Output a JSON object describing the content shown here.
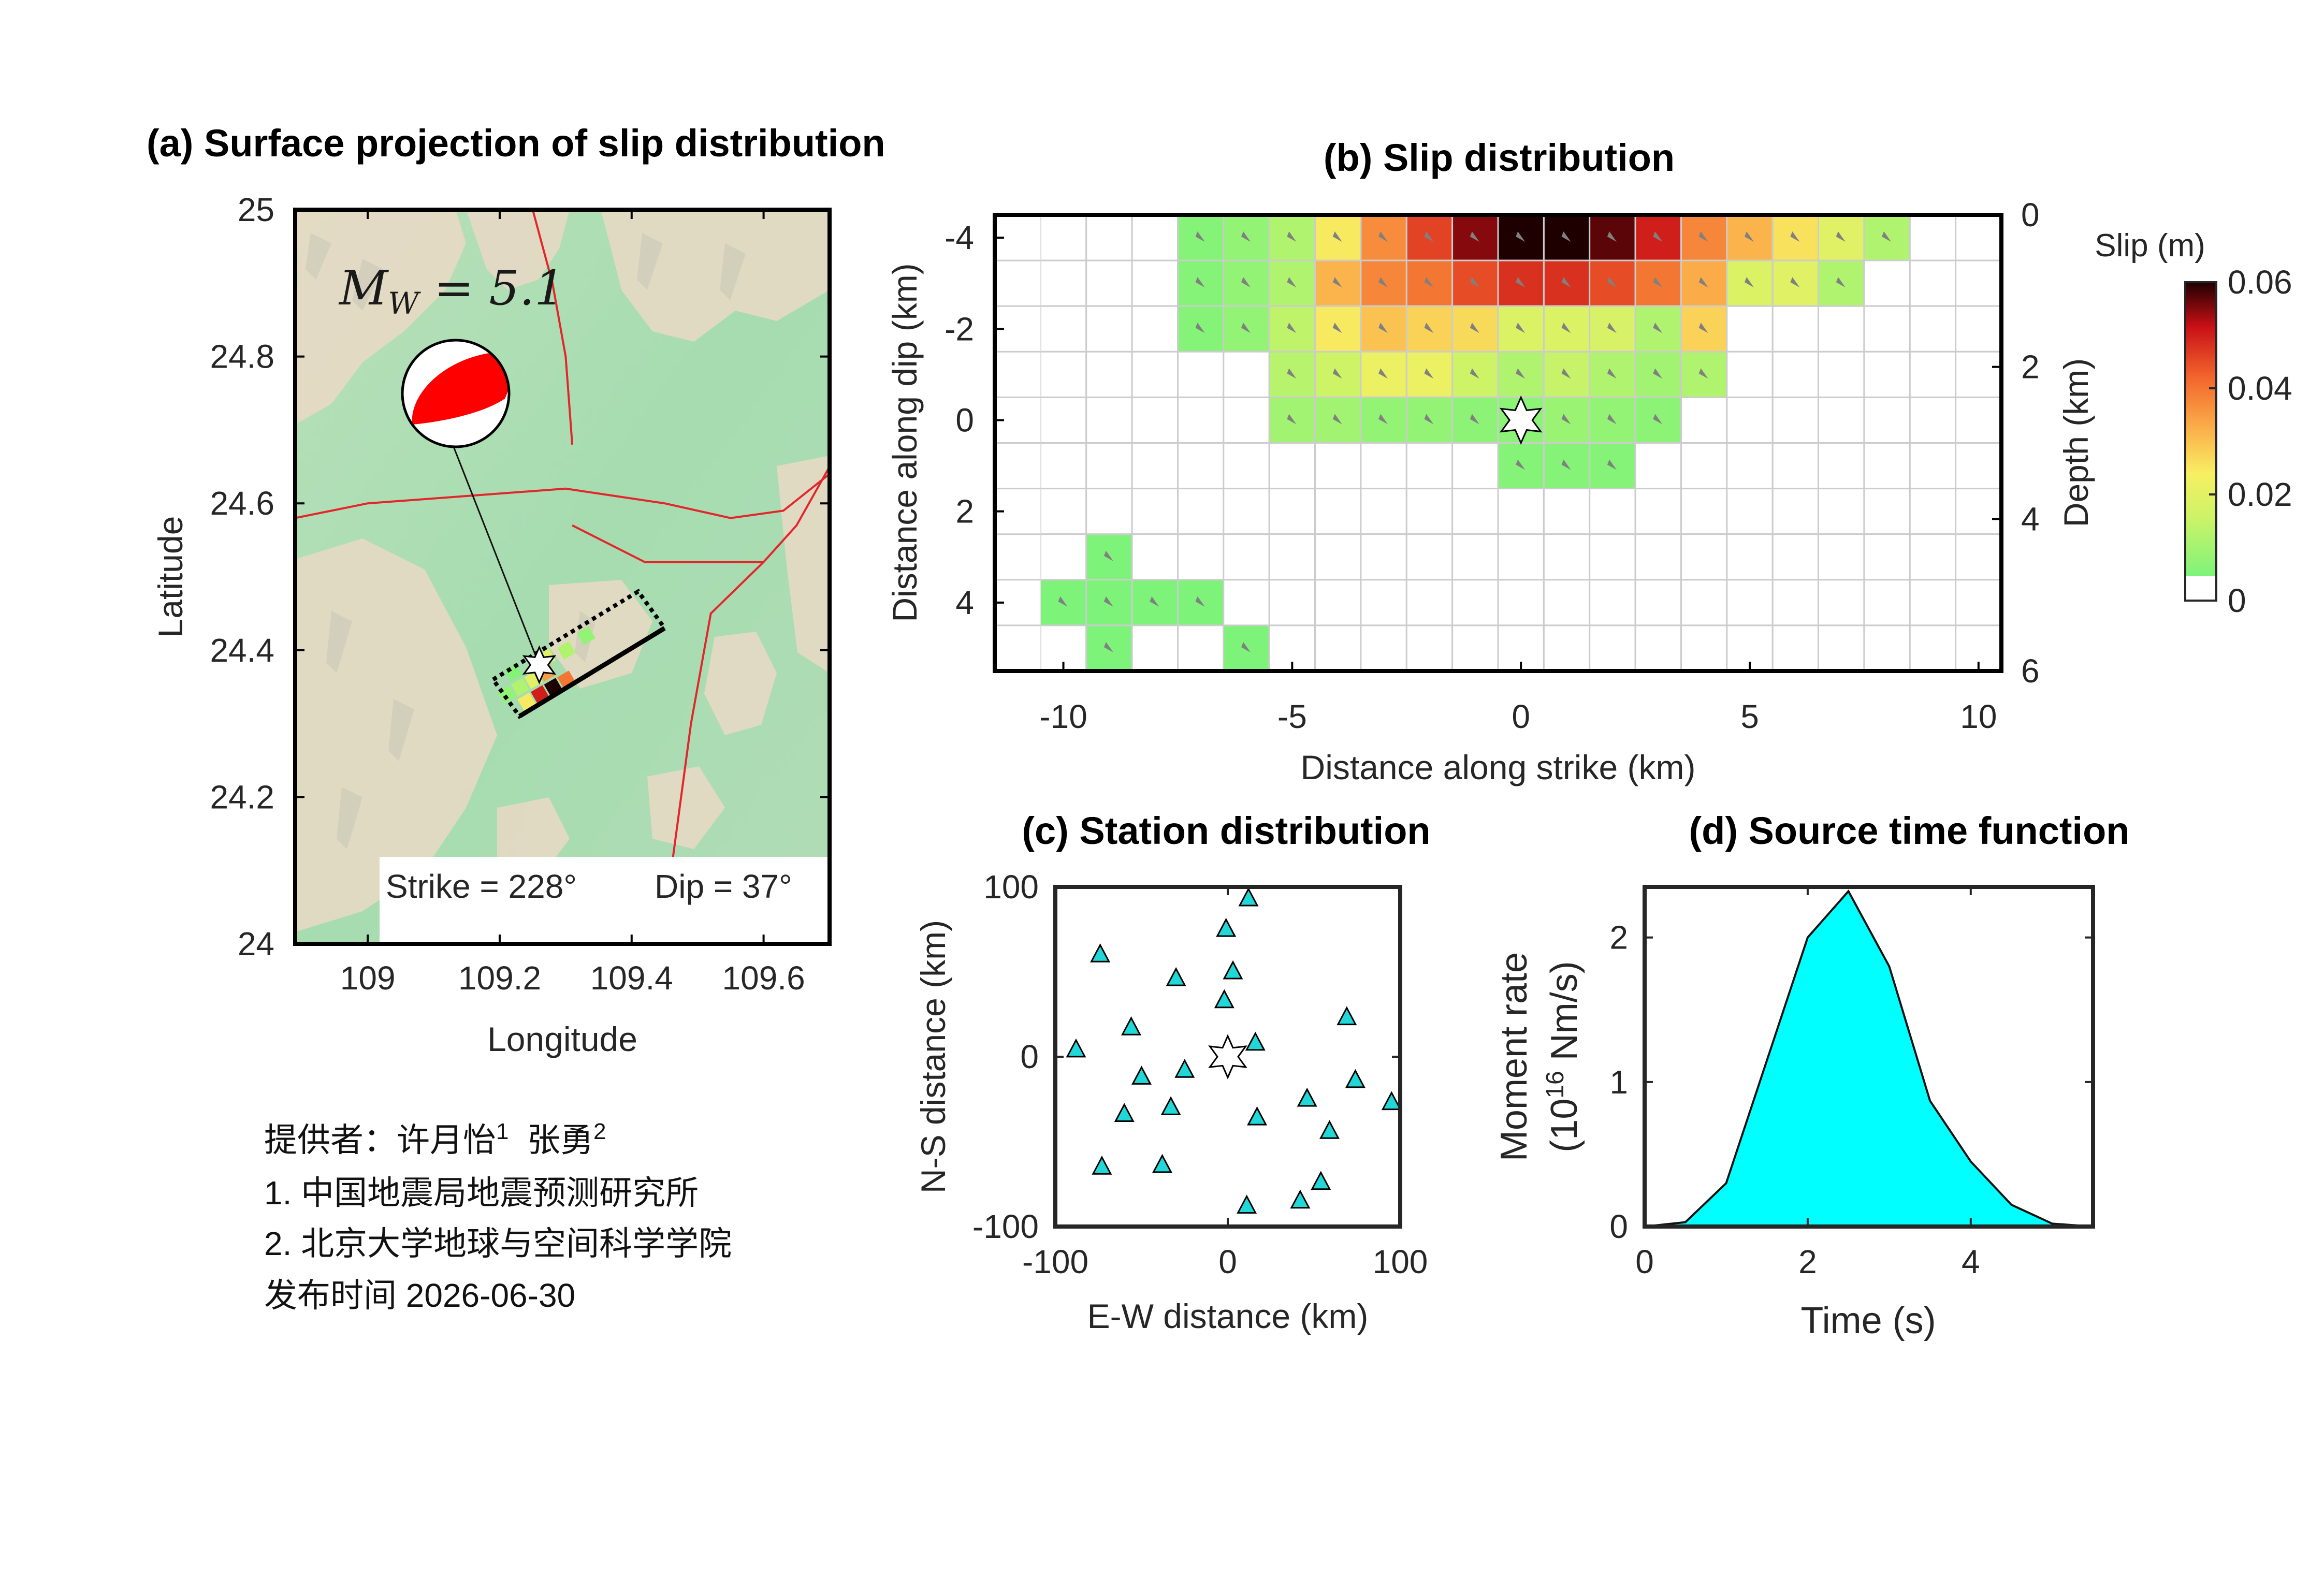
{
  "panel_a": {
    "title": "(a) Surface projection of slip distribution",
    "magnitude_label": "M_W = 5.1",
    "magnitude": 5.1,
    "strike_text": "Strike = 228°",
    "dip_text": "Dip = 37°",
    "xlabel": "Longitude",
    "ylabel": "Latitude",
    "xticks": [
      "109",
      "109.2",
      "109.4",
      "109.6"
    ],
    "yticks": [
      "24",
      "24.2",
      "24.4",
      "24.6",
      "24.8",
      "25"
    ]
  },
  "panel_b": {
    "title": "(b) Slip distribution",
    "xlabel": "Distance along strike (km)",
    "ylabel": "Distance along dip (km)",
    "ylabel_right": "Depth (km)",
    "xticks": [
      "-10",
      "-5",
      "0",
      "5",
      "10"
    ],
    "yticks": [
      "-4",
      "-2",
      "0",
      "2",
      "4"
    ],
    "yticks_right": [
      "0",
      "2",
      "4",
      "6"
    ]
  },
  "colorbar": {
    "title": "Slip (m)",
    "ticks": [
      "0",
      "0.02",
      "0.04",
      "0.06"
    ]
  },
  "panel_c": {
    "title": "(c) Station distribution",
    "xlabel": "E-W distance (km)",
    "ylabel": "N-S distance (km)",
    "xticks": [
      "-100",
      "0",
      "100"
    ],
    "yticks": [
      "-100",
      "0",
      "100"
    ]
  },
  "panel_d": {
    "title": "(d) Source time function",
    "xlabel": "Time (s)",
    "ylabel_line1": "Moment rate",
    "ylabel_line2_pre": "(10",
    "ylabel_line2_sup": "16",
    "ylabel_line2_post": " Nm/s)",
    "xticks": [
      "0",
      "2",
      "4"
    ],
    "yticks": [
      "0",
      "1",
      "2"
    ]
  },
  "credits": {
    "provider_label": "提供者：许月怡",
    "sup1": "1",
    "name2": "  张勇",
    "sup2": "2",
    "affil1": "1. 中国地震局地震预测研究所",
    "affil2": "2. 北京大学地球与空间科学学院",
    "release": "发布时间 2026-06-30"
  },
  "colors": {
    "fault_line": "#e3262b",
    "beachball": "#ff0000",
    "station": "#21d7d7",
    "stf_fill": "#00ffff",
    "map_base": "#a9dcb0"
  },
  "chart_data": [
    {
      "id": "map",
      "type": "scatter",
      "title": "(a) Surface projection of slip distribution",
      "xlabel": "Longitude",
      "ylabel": "Latitude",
      "xlim": [
        108.89,
        109.7
      ],
      "ylim": [
        24.0,
        25.0
      ],
      "epicenter": [
        109.26,
        24.38
      ],
      "beachball_center": [
        109.13,
        24.75
      ],
      "fault_box": [
        [
          109.19,
          24.36
        ],
        [
          109.41,
          24.48
        ],
        [
          109.45,
          24.43
        ],
        [
          109.23,
          24.31
        ]
      ],
      "faults": [
        [
          [
            108.89,
            24.58
          ],
          [
            109.0,
            24.6
          ],
          [
            109.15,
            24.61
          ],
          [
            109.3,
            24.62
          ],
          [
            109.45,
            24.6
          ],
          [
            109.55,
            24.58
          ],
          [
            109.63,
            24.59
          ],
          [
            109.7,
            24.64
          ]
        ],
        [
          [
            109.25,
            25.0
          ],
          [
            109.28,
            24.9
          ],
          [
            109.3,
            24.8
          ],
          [
            109.31,
            24.68
          ]
        ],
        [
          [
            109.31,
            24.57
          ],
          [
            109.42,
            24.52
          ],
          [
            109.6,
            24.52
          ]
        ],
        [
          [
            109.6,
            24.52
          ],
          [
            109.52,
            24.45
          ],
          [
            109.49,
            24.3
          ],
          [
            109.46,
            24.1
          ],
          [
            109.44,
            24.0
          ]
        ],
        [
          [
            109.6,
            24.52
          ],
          [
            109.65,
            24.57
          ],
          [
            109.7,
            24.65
          ]
        ]
      ]
    },
    {
      "id": "slip",
      "type": "heatmap",
      "title": "(b) Slip distribution",
      "xlabel": "Distance along strike (km)",
      "ylabel": "Distance along dip (km)",
      "xlim": [
        -11.5,
        10.5
      ],
      "ylim": [
        -4.5,
        5.5
      ],
      "depth_range_km": [
        0,
        6
      ],
      "cell_size_km": 1,
      "x0": -10.5,
      "y0": -4.5,
      "columns": 21,
      "rows": 10,
      "max_slip_m": 0.06,
      "hypocenter": [
        0,
        0
      ],
      "rake_deg": 30,
      "slip_m": [
        [
          0,
          0,
          0,
          0.006,
          0.008,
          0.012,
          0.025,
          0.037,
          0.046,
          0.055,
          0.061,
          0.06,
          0.057,
          0.05,
          0.038,
          0.032,
          0.026,
          0.02,
          0.012,
          0,
          0
        ],
        [
          0,
          0,
          0,
          0.006,
          0.008,
          0.012,
          0.032,
          0.038,
          0.04,
          0.045,
          0.048,
          0.048,
          0.045,
          0.04,
          0.033,
          0.019,
          0.02,
          0.012,
          0,
          0,
          0
        ],
        [
          0,
          0,
          0,
          0.006,
          0.008,
          0.014,
          0.025,
          0.03,
          0.028,
          0.027,
          0.019,
          0.019,
          0.018,
          0.012,
          0.028,
          0,
          0,
          0,
          0,
          0,
          0
        ],
        [
          0,
          0,
          0,
          0,
          0,
          0.013,
          0.016,
          0.022,
          0.022,
          0.016,
          0.012,
          0.015,
          0.012,
          0.01,
          0.012,
          0,
          0,
          0,
          0,
          0,
          0
        ],
        [
          0,
          0,
          0,
          0,
          0,
          0.01,
          0.01,
          0.008,
          0.008,
          0.007,
          0.007,
          0.009,
          0.008,
          0.007,
          0,
          0,
          0,
          0,
          0,
          0,
          0
        ],
        [
          0,
          0,
          0,
          0,
          0,
          0,
          0,
          0,
          0,
          0,
          0.006,
          0.006,
          0.006,
          0,
          0,
          0,
          0,
          0,
          0,
          0,
          0
        ],
        [
          0,
          0,
          0,
          0,
          0,
          0,
          0,
          0,
          0,
          0,
          0,
          0,
          0,
          0,
          0,
          0,
          0,
          0,
          0,
          0,
          0
        ],
        [
          0,
          0.005,
          0,
          0,
          0,
          0,
          0,
          0,
          0,
          0,
          0,
          0,
          0,
          0,
          0,
          0,
          0,
          0,
          0,
          0,
          0
        ],
        [
          0.005,
          0.005,
          0.005,
          0.005,
          0,
          0,
          0,
          0,
          0,
          0,
          0,
          0,
          0,
          0,
          0,
          0,
          0,
          0,
          0,
          0,
          0
        ],
        [
          0,
          0.005,
          0,
          0,
          0.005,
          0,
          0,
          0,
          0,
          0,
          0,
          0,
          0,
          0,
          0,
          0,
          0,
          0,
          0,
          0,
          0
        ]
      ]
    },
    {
      "id": "stations",
      "type": "scatter",
      "title": "(c) Station distribution",
      "xlabel": "E-W distance (km)",
      "ylabel": "N-S distance (km)",
      "xlim": [
        -100,
        100
      ],
      "ylim": [
        -100,
        100
      ],
      "epicenter": [
        0,
        0
      ],
      "points": [
        [
          12,
          93
        ],
        [
          -74,
          60
        ],
        [
          -1,
          75
        ],
        [
          3,
          50
        ],
        [
          -30,
          46
        ],
        [
          -2,
          33
        ],
        [
          -56,
          17
        ],
        [
          -88,
          4
        ],
        [
          16,
          8
        ],
        [
          69,
          23
        ],
        [
          -50,
          -12
        ],
        [
          -25,
          -8
        ],
        [
          74,
          -14
        ],
        [
          46,
          -25
        ],
        [
          95,
          -27
        ],
        [
          -33,
          -30
        ],
        [
          -60,
          -34
        ],
        [
          17,
          -36
        ],
        [
          59,
          -44
        ],
        [
          -73,
          -65
        ],
        [
          -38,
          -64
        ],
        [
          54,
          -74
        ],
        [
          42,
          -85
        ],
        [
          11,
          -88
        ]
      ]
    },
    {
      "id": "stf",
      "type": "area",
      "title": "(d) Source time function",
      "xlabel": "Time (s)",
      "ylabel": "Moment rate (10^16 Nm/s)",
      "xlim": [
        0,
        5.5
      ],
      "ylim": [
        0,
        2.35
      ],
      "x": [
        0,
        0.5,
        1,
        1.5,
        2,
        2.5,
        3,
        3.5,
        4,
        4.5,
        5,
        5.5
      ],
      "y": [
        0,
        0.03,
        0.3,
        1.15,
        2.0,
        2.32,
        1.8,
        0.87,
        0.45,
        0.15,
        0.02,
        0
      ]
    }
  ]
}
